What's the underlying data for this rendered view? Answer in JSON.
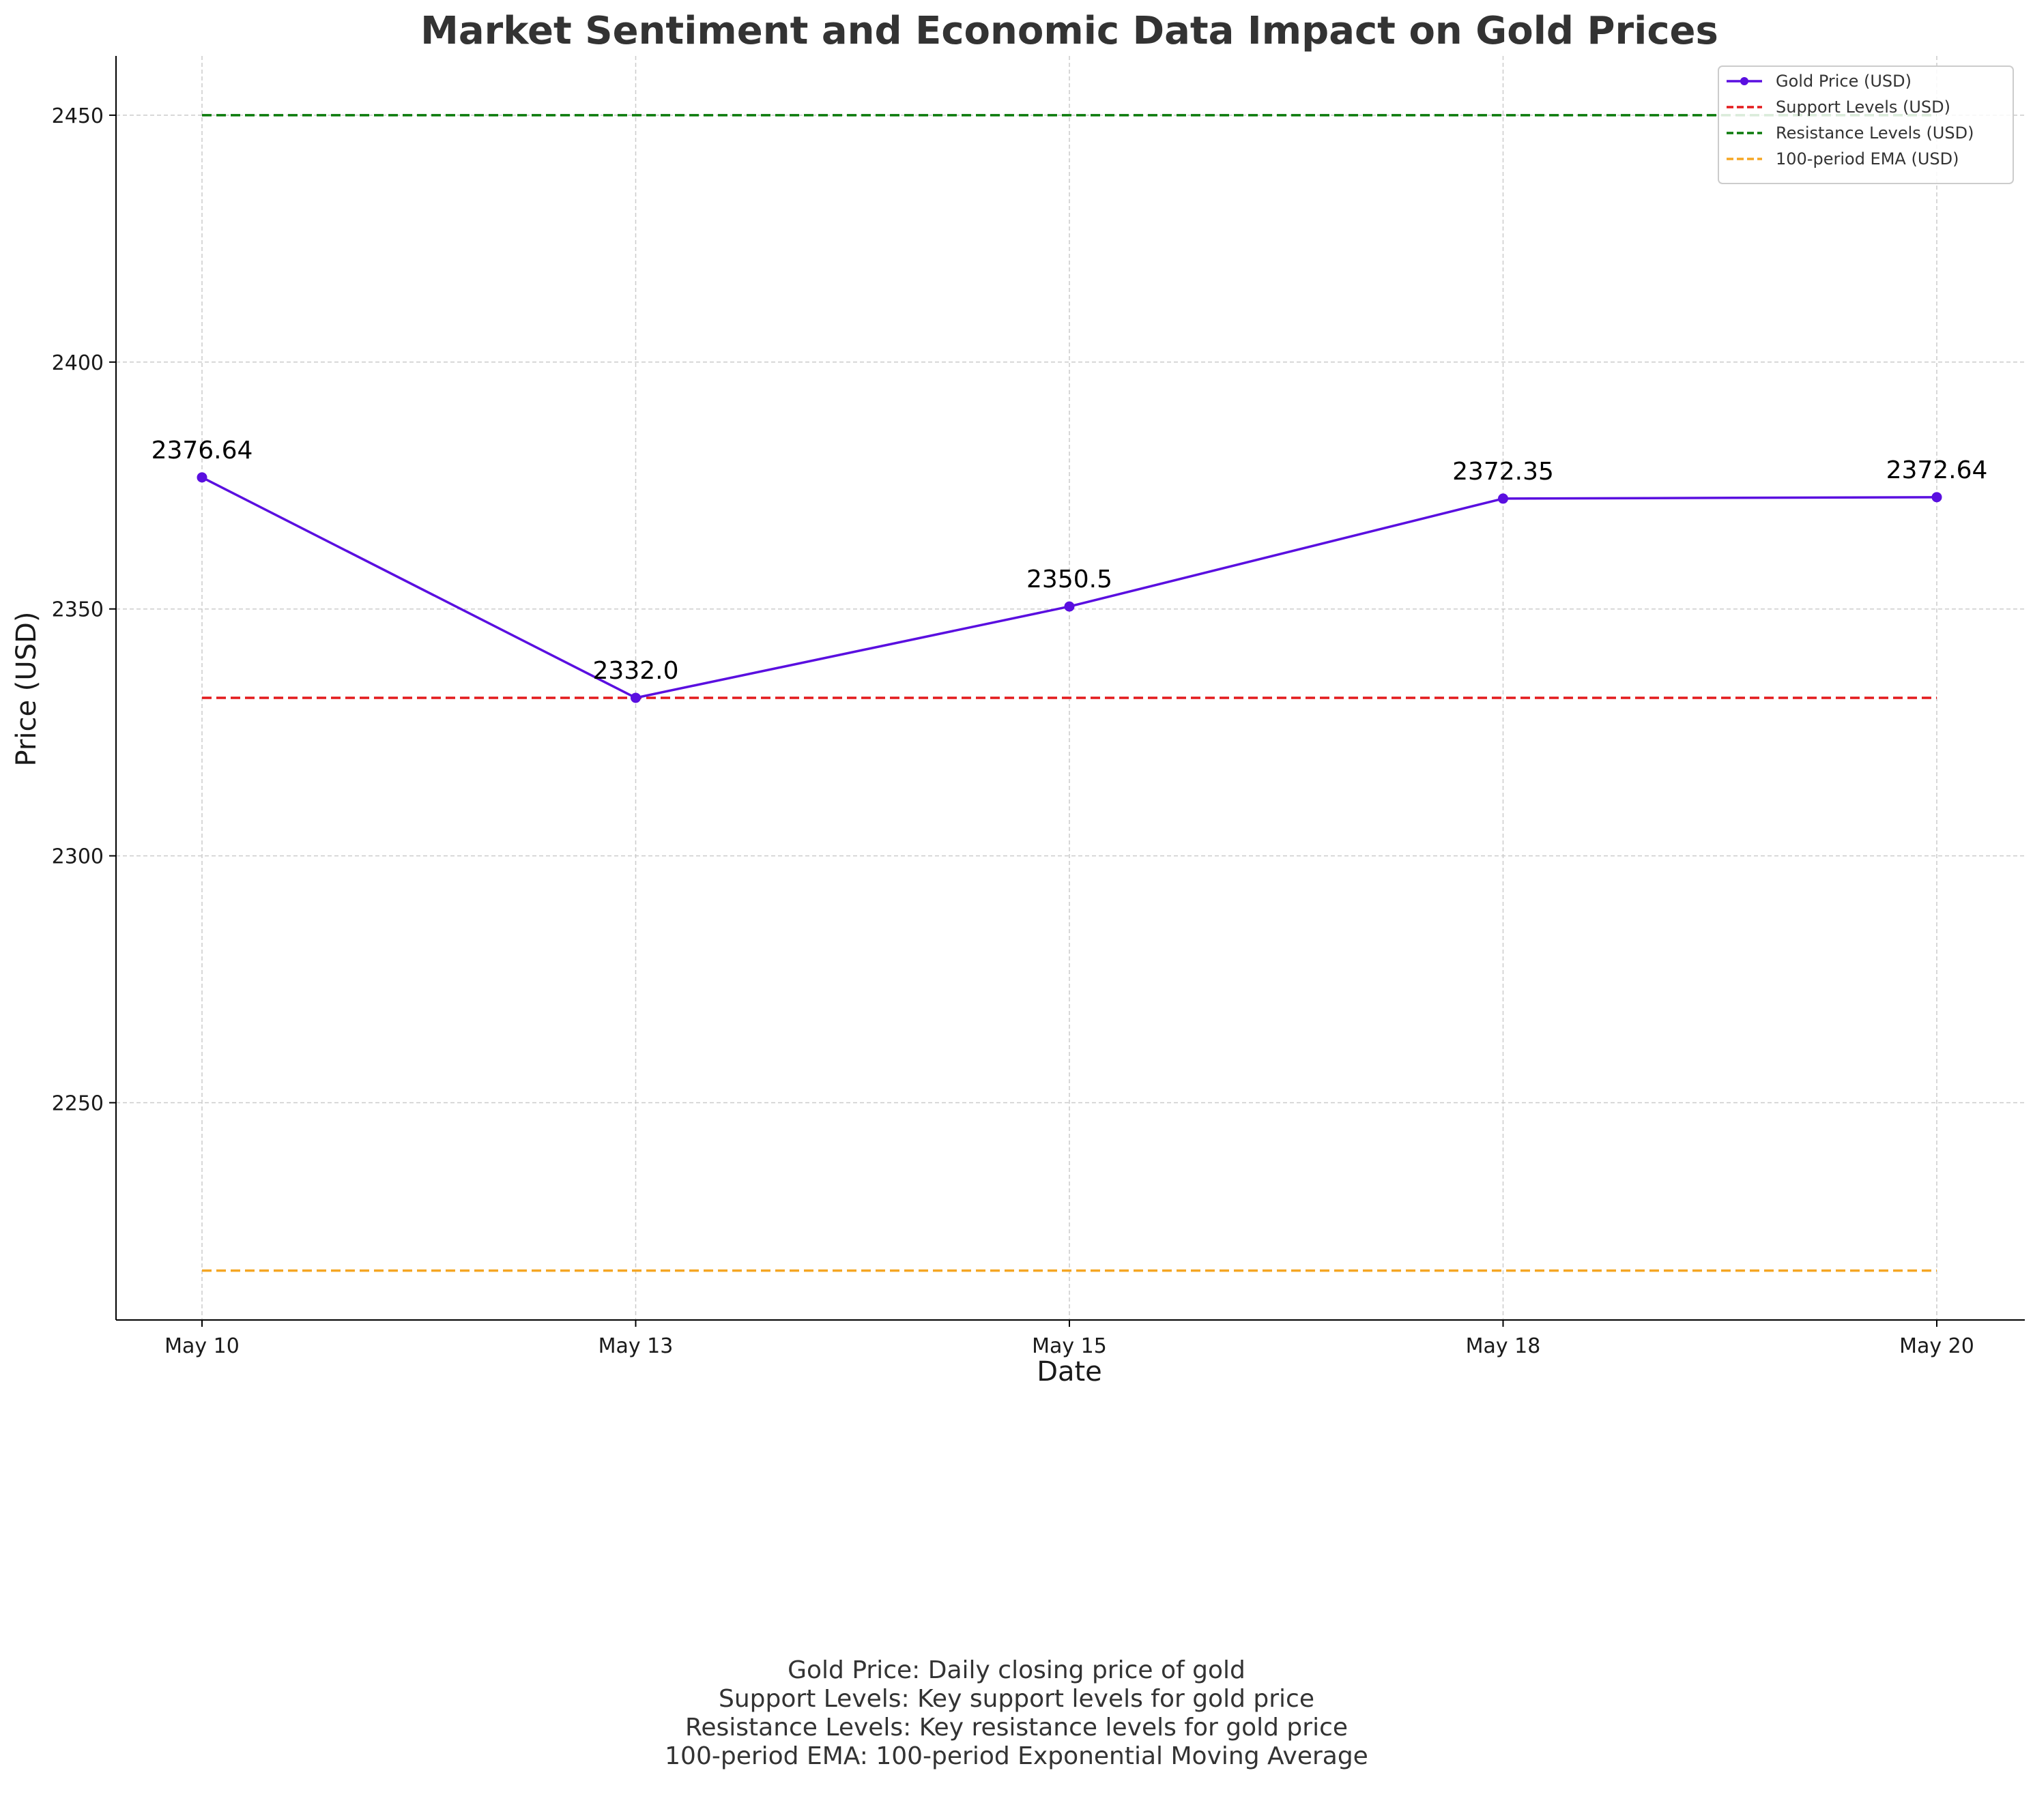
{
  "chart_data": {
    "type": "line",
    "title": "Market Sentiment and Economic Data Impact on Gold Prices",
    "xlabel": "Date",
    "ylabel": "Price (USD)",
    "categories": [
      "May 10",
      "May 13",
      "May 15",
      "May 18",
      "May 20"
    ],
    "ylim": [
      2206,
      2462
    ],
    "yticks": [
      2250,
      2300,
      2350,
      2400,
      2450
    ],
    "grid": true,
    "legend_position": "top-right",
    "series": [
      {
        "name": "Gold Price (USD)",
        "style": "solid-marker",
        "color": "#5a0fe0",
        "values": [
          2376.64,
          2332.0,
          2350.5,
          2372.35,
          2372.64
        ],
        "labels": [
          "2376.64",
          "2332.0",
          "2350.5",
          "2372.35",
          "2372.64"
        ]
      },
      {
        "name": "Support Levels (USD)",
        "style": "dashed",
        "color": "#e31a1c",
        "values": [
          2332.0,
          2332.0,
          2332.0,
          2332.0,
          2332.0
        ]
      },
      {
        "name": "Resistance Levels (USD)",
        "style": "dashed",
        "color": "#0b7a0b",
        "values": [
          2450,
          2450,
          2450,
          2450,
          2450
        ]
      },
      {
        "name": "100-period EMA (USD)",
        "style": "dashed",
        "color": "#f5a623",
        "values": [
          2216,
          2216,
          2216,
          2216,
          2216
        ]
      }
    ],
    "annotations": [
      "Gold Price: Daily closing price of gold",
      "Support Levels: Key support levels for gold price",
      "Resistance Levels: Key resistance levels for gold price",
      "100-period EMA: 100-period Exponential Moving Average"
    ]
  }
}
